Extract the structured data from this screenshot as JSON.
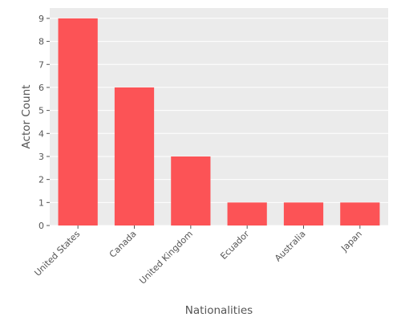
{
  "chart_data": {
    "type": "bar",
    "categories": [
      "United States",
      "Canada",
      "United Kingdom",
      "Ecuador",
      "Australia",
      "Japan"
    ],
    "values": [
      9,
      6,
      3,
      1,
      1,
      1
    ],
    "title": "",
    "xlabel": "Nationalities",
    "ylabel": "Actor Count",
    "ylim": [
      0,
      9.45
    ],
    "yticks": [
      0,
      1,
      2,
      3,
      4,
      5,
      6,
      7,
      8,
      9
    ],
    "grid": true,
    "legend": "none",
    "colors": {
      "bar": "#fc5356",
      "plot_background": "#ebebeb",
      "grid": "#ffffff",
      "text": "#555555"
    }
  }
}
